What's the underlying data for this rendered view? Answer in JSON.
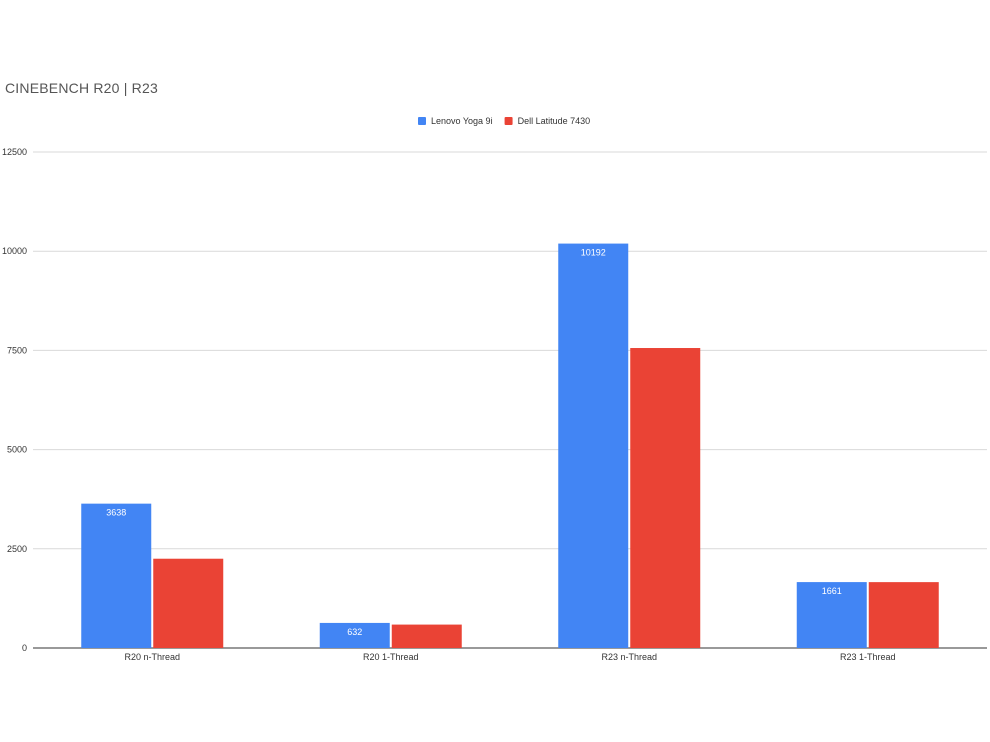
{
  "chart_data": {
    "type": "bar",
    "title": "CINEBENCH R20 | R23",
    "xlabel": "",
    "ylabel": "",
    "categories": [
      "R20 n-Thread",
      "R20 1-Thread",
      "R23 n-Thread",
      "R23 1-Thread"
    ],
    "series": [
      {
        "name": "Lenovo Yoga 9i",
        "color": "#4285f4",
        "values": [
          3638,
          632,
          10192,
          1661
        ],
        "labels": [
          "3638",
          "632",
          "10192",
          "1661"
        ]
      },
      {
        "name": "Dell Latitude 7430",
        "color": "#ea4335",
        "values": [
          2250,
          590,
          7560,
          1660
        ],
        "labels": [
          "",
          "",
          "",
          ""
        ]
      }
    ],
    "ylim": [
      0,
      12500
    ],
    "yticks": [
      "0",
      "2500",
      "5000",
      "7500",
      "10000",
      "12500"
    ],
    "grid": true,
    "legend_position": "top"
  }
}
